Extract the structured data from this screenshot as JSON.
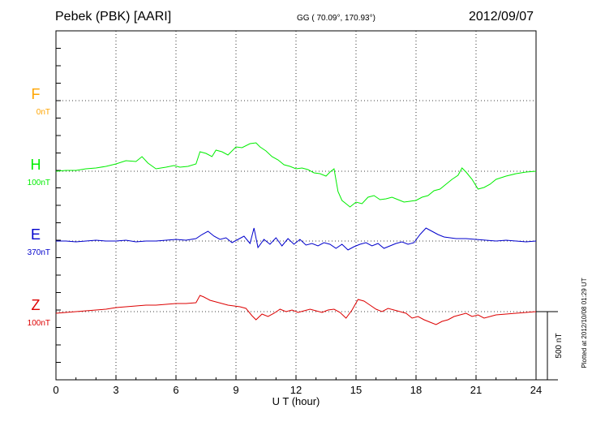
{
  "header": {
    "station": "Pebek (PBK)  [AARI]",
    "coords": "GG ( 70.09°, 170.93°)",
    "date": "2012/09/07"
  },
  "side_note": "Plotted at 2012/10/08 01:29 UT",
  "scale_bar_label": "500 nT",
  "colors": {
    "F": "#ffa500",
    "H": "#00ee00",
    "E": "#0000cc",
    "Z": "#dd0000"
  },
  "chart_data": {
    "type": "line",
    "title": "Pebek (PBK)  [AARI]",
    "xlabel": "U T (hour)",
    "xlim": [
      0,
      24
    ],
    "x_ticks": [
      "0",
      "3",
      "6",
      "9",
      "12",
      "15",
      "18",
      "21",
      "24"
    ],
    "grid": true,
    "series": [
      {
        "name": "F",
        "offset_label": "0nT",
        "values": []
      },
      {
        "name": "H",
        "offset_label": "100nT",
        "x": [
          0,
          0.5,
          1,
          1.5,
          2,
          2.5,
          3,
          3.5,
          4,
          4.3,
          4.6,
          5,
          5.5,
          5.9,
          6.2,
          6.6,
          7,
          7.2,
          7.5,
          7.8,
          8,
          8.3,
          8.6,
          9,
          9.3,
          9.7,
          10,
          10.2,
          10.5,
          10.8,
          11.1,
          11.4,
          11.7,
          12,
          12.3,
          12.6,
          12.9,
          13.2,
          13.5,
          13.7,
          13.9,
          14.1,
          14.3,
          14.5,
          14.7,
          15,
          15.3,
          15.6,
          15.9,
          16.2,
          16.5,
          16.8,
          17.1,
          17.4,
          17.7,
          18,
          18.3,
          18.6,
          18.9,
          19.2,
          19.5,
          19.8,
          20.1,
          20.3,
          20.5,
          20.8,
          21.1,
          21.4,
          21.7,
          22,
          22.5,
          23,
          23.5,
          24
        ],
        "values": [
          0,
          1,
          1,
          3,
          4,
          6,
          9,
          13,
          12,
          18,
          10,
          3,
          5,
          7,
          5,
          6,
          9,
          24,
          22,
          18,
          26,
          24,
          20,
          30,
          29,
          34,
          35,
          30,
          25,
          18,
          14,
          8,
          6,
          3,
          4,
          2,
          -2,
          -3,
          -6,
          -1,
          3,
          -25,
          -36,
          -40,
          -44,
          -38,
          -40,
          -32,
          -30,
          -35,
          -34,
          -32,
          -35,
          -38,
          -37,
          -36,
          -32,
          -30,
          -24,
          -22,
          -16,
          -10,
          -5,
          4,
          -1,
          -10,
          -22,
          -20,
          -16,
          -10,
          -6,
          -3,
          -1,
          0
        ]
      },
      {
        "name": "E",
        "offset_label": "370nT",
        "x": [
          0,
          0.5,
          1,
          1.5,
          2,
          2.5,
          3,
          3.5,
          4,
          4.5,
          5,
          5.5,
          6,
          6.5,
          7,
          7.3,
          7.6,
          7.9,
          8.2,
          8.5,
          8.8,
          9.1,
          9.4,
          9.7,
          9.9,
          10.1,
          10.4,
          10.7,
          11,
          11.3,
          11.6,
          11.9,
          12.2,
          12.5,
          12.8,
          13.1,
          13.4,
          13.7,
          14,
          14.3,
          14.6,
          14.9,
          15.2,
          15.5,
          15.8,
          16.1,
          16.4,
          16.7,
          17,
          17.3,
          17.6,
          17.9,
          18.2,
          18.5,
          18.8,
          19.1,
          19.4,
          19.7,
          20,
          20.5,
          21,
          21.5,
          22,
          22.5,
          23,
          23.5,
          24
        ],
        "values": [
          0,
          0,
          -1,
          0,
          1,
          0,
          0,
          1,
          -1,
          0,
          0,
          1,
          2,
          1,
          3,
          8,
          12,
          6,
          2,
          4,
          -2,
          2,
          6,
          -3,
          16,
          -8,
          2,
          -4,
          4,
          -6,
          3,
          -4,
          2,
          -5,
          -3,
          -6,
          -2,
          -4,
          -9,
          -4,
          -11,
          -7,
          -4,
          -2,
          -6,
          -3,
          -9,
          -6,
          -3,
          -1,
          -4,
          -2,
          8,
          16,
          12,
          8,
          5,
          4,
          3,
          3,
          2,
          1,
          0,
          1,
          0,
          -1,
          0
        ]
      },
      {
        "name": "Z",
        "offset_label": "100nT",
        "x": [
          0,
          0.5,
          1,
          1.5,
          2,
          2.5,
          3,
          3.5,
          4,
          4.5,
          5,
          5.5,
          6,
          6.5,
          7,
          7.2,
          7.4,
          7.7,
          8,
          8.3,
          8.6,
          8.9,
          9.2,
          9.5,
          9.8,
          10,
          10.3,
          10.6,
          10.9,
          11.2,
          11.5,
          11.8,
          12.1,
          12.4,
          12.7,
          13,
          13.3,
          13.6,
          13.9,
          14.2,
          14.5,
          14.8,
          15.1,
          15.4,
          15.7,
          16,
          16.3,
          16.6,
          16.9,
          17.2,
          17.5,
          17.8,
          18.1,
          18.4,
          18.7,
          19,
          19.3,
          19.6,
          19.9,
          20.2,
          20.5,
          20.8,
          21.1,
          21.4,
          21.7,
          22,
          22.5,
          23,
          23.5,
          24
        ],
        "values": [
          -2,
          -1,
          0,
          1,
          2,
          3,
          5,
          6,
          7,
          8,
          8,
          9,
          10,
          10,
          11,
          20,
          18,
          14,
          12,
          10,
          8,
          7,
          6,
          4,
          -5,
          -10,
          -3,
          -6,
          -2,
          3,
          0,
          2,
          -1,
          1,
          3,
          1,
          -1,
          2,
          3,
          -1,
          -8,
          2,
          15,
          13,
          8,
          3,
          0,
          4,
          2,
          0,
          -2,
          -8,
          -6,
          -10,
          -13,
          -16,
          -12,
          -10,
          -6,
          -4,
          -2,
          -6,
          -4,
          -8,
          -6,
          -4,
          -3,
          -2,
          -1,
          0
        ]
      }
    ],
    "scale_bar_nT": 500
  }
}
